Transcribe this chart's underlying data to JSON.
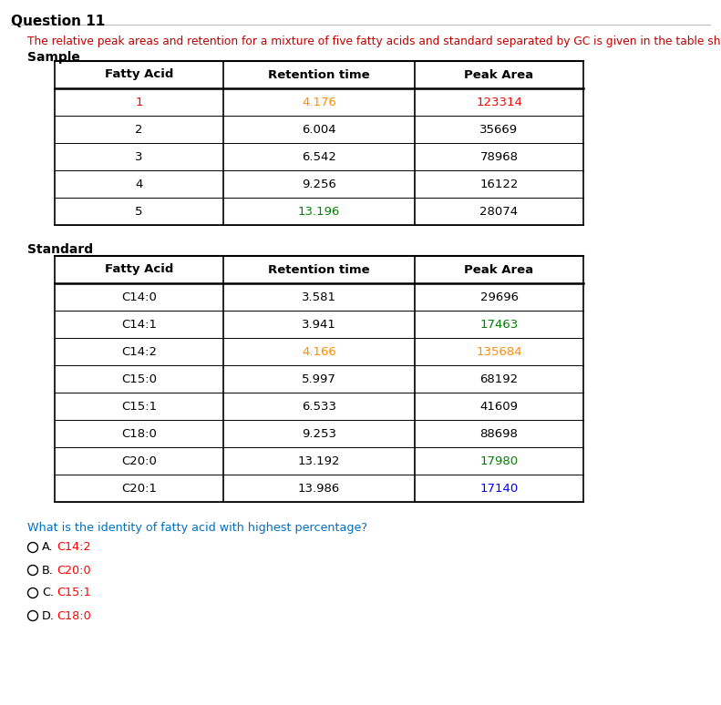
{
  "title": "Question 11",
  "description": "The relative peak areas and retention for a mixture of five fatty acids and standard separated by GC is given in the table shown below.",
  "sample_label": "Sample",
  "standard_label": "Standard",
  "sample_headers": [
    "Fatty Acid",
    "Retention time",
    "Peak Area"
  ],
  "sample_data": [
    [
      "1",
      "4.176",
      "123314"
    ],
    [
      "2",
      "6.004",
      "35669"
    ],
    [
      "3",
      "6.542",
      "78968"
    ],
    [
      "4",
      "9.256",
      "16122"
    ],
    [
      "5",
      "13.196",
      "28074"
    ]
  ],
  "standard_headers": [
    "Fatty Acid",
    "Retention time",
    "Peak Area"
  ],
  "standard_data": [
    [
      "C14:0",
      "3.581",
      "29696"
    ],
    [
      "C14:1",
      "3.941",
      "17463"
    ],
    [
      "C14:2",
      "4.166",
      "135684"
    ],
    [
      "C15:0",
      "5.997",
      "68192"
    ],
    [
      "C15:1",
      "6.533",
      "41609"
    ],
    [
      "C18:0",
      "9.253",
      "88698"
    ],
    [
      "C20:0",
      "13.192",
      "17980"
    ],
    [
      "C20:1",
      "13.986",
      "17140"
    ]
  ],
  "question": "What is the identity of fatty acid with highest percentage?",
  "options": [
    {
      "label": "A.",
      "text": "C14:2"
    },
    {
      "label": "B.",
      "text": "C20:0"
    },
    {
      "label": "C.",
      "text": "C15:1"
    },
    {
      "label": "D.",
      "text": "C18:0"
    }
  ],
  "text_color_default": "#000000",
  "text_color_description": "#C00000",
  "text_color_question": "#0070C0",
  "text_color_option_label": "#000000",
  "bg_color": "#FFFFFF",
  "sample_special_cells": {
    "1,0": "#FF0000",
    "1,1": "#FF8C00",
    "1,2": "#FF0000",
    "5,1": "#008000"
  },
  "standard_special_cells": {
    "2,2": "#008000",
    "3,1": "#FF8C00",
    "3,2": "#FF8C00",
    "7,2": "#008000",
    "8,2": "#0000FF"
  },
  "option_colors": [
    "#FF0000",
    "#FF0000",
    "#FF0000",
    "#FF0000"
  ]
}
